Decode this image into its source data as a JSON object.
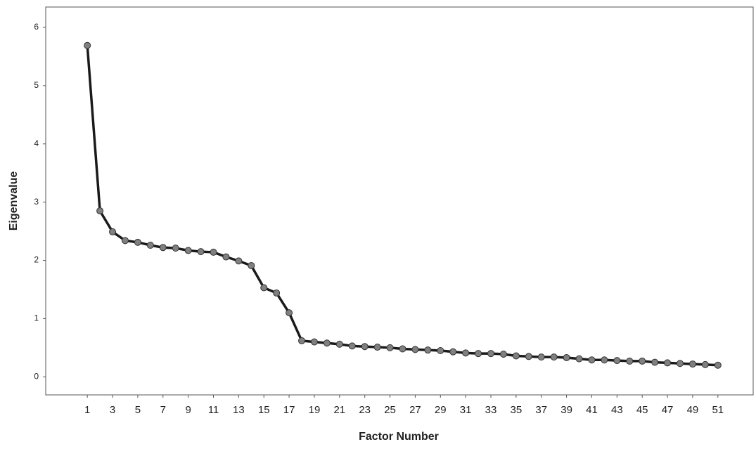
{
  "chart_data": {
    "type": "line",
    "x_label": "Factor Number",
    "y_label": "Eigenvalue",
    "x": [
      1,
      2,
      3,
      4,
      5,
      6,
      7,
      8,
      9,
      10,
      11,
      12,
      13,
      14,
      15,
      16,
      17,
      18,
      19,
      20,
      21,
      22,
      23,
      24,
      25,
      26,
      27,
      28,
      29,
      30,
      31,
      32,
      33,
      34,
      35,
      36,
      37,
      38,
      39,
      40,
      41,
      42,
      43,
      44,
      45,
      46,
      47,
      48,
      49,
      50,
      51
    ],
    "series": [
      {
        "color": "#1a1a1a",
        "marker_color": "#808080",
        "values": [
          5.69,
          2.85,
          2.49,
          2.34,
          2.31,
          2.26,
          2.22,
          2.21,
          2.17,
          2.15,
          2.14,
          2.06,
          1.99,
          1.91,
          1.53,
          1.44,
          1.1,
          0.62,
          0.6,
          0.58,
          0.56,
          0.53,
          0.52,
          0.51,
          0.5,
          0.48,
          0.47,
          0.46,
          0.45,
          0.43,
          0.41,
          0.4,
          0.4,
          0.39,
          0.36,
          0.35,
          0.34,
          0.34,
          0.33,
          0.31,
          0.29,
          0.29,
          0.28,
          0.27,
          0.27,
          0.25,
          0.24,
          0.23,
          0.22,
          0.21,
          0.2
        ]
      }
    ],
    "xlim": [
      -2.3,
      53.8
    ],
    "xticks": [
      1,
      3,
      5,
      7,
      9,
      11,
      13,
      15,
      17,
      19,
      21,
      23,
      25,
      27,
      29,
      31,
      33,
      35,
      37,
      39,
      41,
      43,
      45,
      47,
      49,
      51
    ],
    "ylim": [
      -0.31,
      6.35
    ],
    "yticks": [
      0,
      1,
      2,
      3,
      4,
      5,
      6
    ],
    "grid": false
  }
}
